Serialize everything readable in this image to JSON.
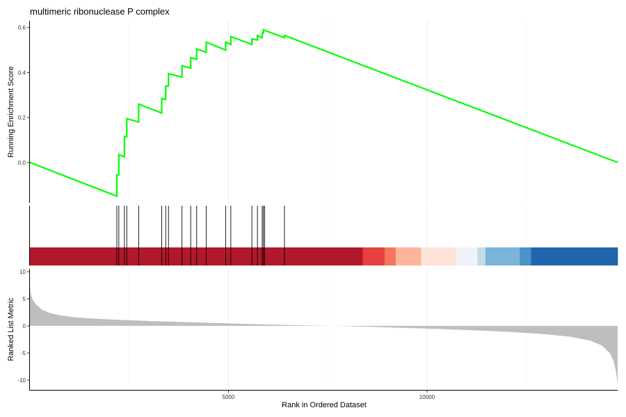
{
  "chart_data": {
    "type": "line",
    "title": "multimeric ribonuclease P complex",
    "xlabel": "Rank in Ordered Dataset",
    "x_ticks": [
      5000,
      10000
    ],
    "xlim": [
      1,
      14800
    ],
    "grid": "vertical",
    "enrichment": {
      "ylabel": "Running Enrichment Score",
      "y_ticks": [
        0.0,
        0.2,
        0.4,
        0.6
      ],
      "ylim": [
        -0.18,
        0.63
      ],
      "color": "#00FF00",
      "points": [
        [
          1,
          0.0
        ],
        [
          2190,
          -0.15
        ],
        [
          2190,
          -0.055
        ],
        [
          2240,
          -0.055
        ],
        [
          2240,
          0.035
        ],
        [
          2380,
          0.025
        ],
        [
          2380,
          0.115
        ],
        [
          2440,
          0.115
        ],
        [
          2440,
          0.195
        ],
        [
          2740,
          0.18
        ],
        [
          2740,
          0.26
        ],
        [
          3320,
          0.22
        ],
        [
          3320,
          0.285
        ],
        [
          3420,
          0.28
        ],
        [
          3420,
          0.34
        ],
        [
          3490,
          0.34
        ],
        [
          3490,
          0.395
        ],
        [
          3830,
          0.38
        ],
        [
          3830,
          0.43
        ],
        [
          4050,
          0.42
        ],
        [
          4050,
          0.465
        ],
        [
          4200,
          0.46
        ],
        [
          4200,
          0.505
        ],
        [
          4440,
          0.49
        ],
        [
          4440,
          0.535
        ],
        [
          4930,
          0.5
        ],
        [
          4930,
          0.535
        ],
        [
          5060,
          0.525
        ],
        [
          5060,
          0.56
        ],
        [
          5590,
          0.525
        ],
        [
          5590,
          0.55
        ],
        [
          5730,
          0.545
        ],
        [
          5730,
          0.565
        ],
        [
          5850,
          0.555
        ],
        [
          5850,
          0.575
        ],
        [
          5880,
          0.575
        ],
        [
          5880,
          0.59
        ],
        [
          6410,
          0.555
        ],
        [
          6410,
          0.565
        ],
        [
          14800,
          0.0
        ]
      ]
    },
    "hits": [
      2190,
      2240,
      2380,
      2440,
      2740,
      3320,
      3420,
      3490,
      3830,
      4050,
      4200,
      4440,
      4930,
      5060,
      5590,
      5730,
      5850,
      5880,
      5910,
      6410
    ],
    "heat_bands": [
      {
        "from": 1,
        "to": 8380,
        "color": "#B2182B"
      },
      {
        "from": 8380,
        "to": 8930,
        "color": "#E6413E"
      },
      {
        "from": 8930,
        "to": 9210,
        "color": "#F4765C"
      },
      {
        "from": 9210,
        "to": 9850,
        "color": "#FCB59A"
      },
      {
        "from": 9850,
        "to": 10740,
        "color": "#FDE3D9"
      },
      {
        "from": 10740,
        "to": 11270,
        "color": "#EEF3FA"
      },
      {
        "from": 11270,
        "to": 11470,
        "color": "#C2DCEB"
      },
      {
        "from": 11470,
        "to": 12340,
        "color": "#79B4D9"
      },
      {
        "from": 12340,
        "to": 12620,
        "color": "#4A92C7"
      },
      {
        "from": 12620,
        "to": 14800,
        "color": "#2166AC"
      }
    ],
    "ranked_metric": {
      "ylabel": "Ranked List Metric",
      "y_ticks": [
        10,
        5,
        0,
        -5,
        -10
      ],
      "ylim": [
        -11.8,
        10.5
      ],
      "fill_color": "#BEBEBE",
      "curve": [
        [
          1,
          7.5
        ],
        [
          20,
          6.0
        ],
        [
          60,
          5.0
        ],
        [
          150,
          4.0
        ],
        [
          300,
          3.0
        ],
        [
          500,
          2.4
        ],
        [
          800,
          1.9
        ],
        [
          1200,
          1.55
        ],
        [
          1700,
          1.3
        ],
        [
          2300,
          1.1
        ],
        [
          3000,
          0.9
        ],
        [
          4000,
          0.68
        ],
        [
          5000,
          0.45
        ],
        [
          6000,
          0.25
        ],
        [
          7000,
          0.08
        ],
        [
          7700,
          0.0
        ],
        [
          8500,
          -0.15
        ],
        [
          9500,
          -0.38
        ],
        [
          10500,
          -0.62
        ],
        [
          11500,
          -0.9
        ],
        [
          12300,
          -1.2
        ],
        [
          13000,
          -1.55
        ],
        [
          13600,
          -2.0
        ],
        [
          14100,
          -2.7
        ],
        [
          14400,
          -3.6
        ],
        [
          14600,
          -5.0
        ],
        [
          14700,
          -6.5
        ],
        [
          14760,
          -8.5
        ],
        [
          14800,
          -10.8
        ]
      ]
    }
  }
}
